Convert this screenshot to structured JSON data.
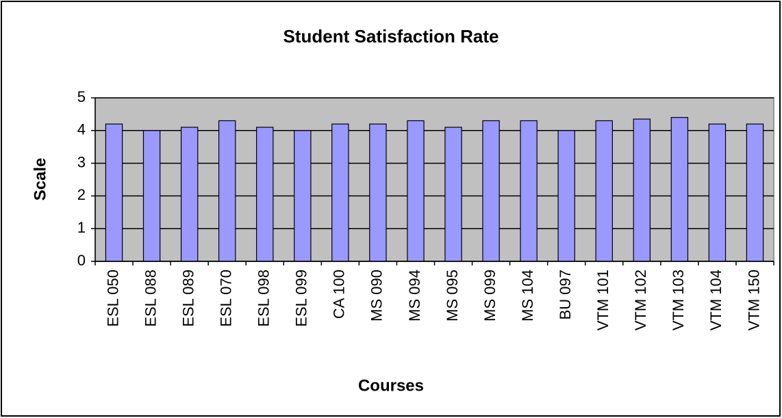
{
  "chart_data": {
    "type": "bar",
    "title": "Student Satisfaction Rate",
    "x_label": "Courses",
    "y_label": "Scale",
    "categories": [
      "ESL 050",
      "ESL 088",
      "ESL 089",
      "ESL 070",
      "ESL 098",
      "ESL 099",
      "CA 100",
      "MS 090",
      "MS 094",
      "MS 095",
      "MS 099",
      "MS 104",
      "BU 097",
      "VTM 101",
      "VTM 102",
      "VTM 103",
      "VTM 104",
      "VTM 150"
    ],
    "values": [
      4.2,
      4.0,
      4.1,
      4.3,
      4.1,
      4.0,
      4.2,
      4.2,
      4.3,
      4.1,
      4.3,
      4.3,
      4.0,
      4.3,
      4.35,
      4.4,
      4.2,
      4.2
    ],
    "color": "#9999ff",
    "ylim": [
      0,
      5
    ],
    "yticks": [
      0,
      1,
      2,
      3,
      4,
      5
    ],
    "grid": true
  }
}
